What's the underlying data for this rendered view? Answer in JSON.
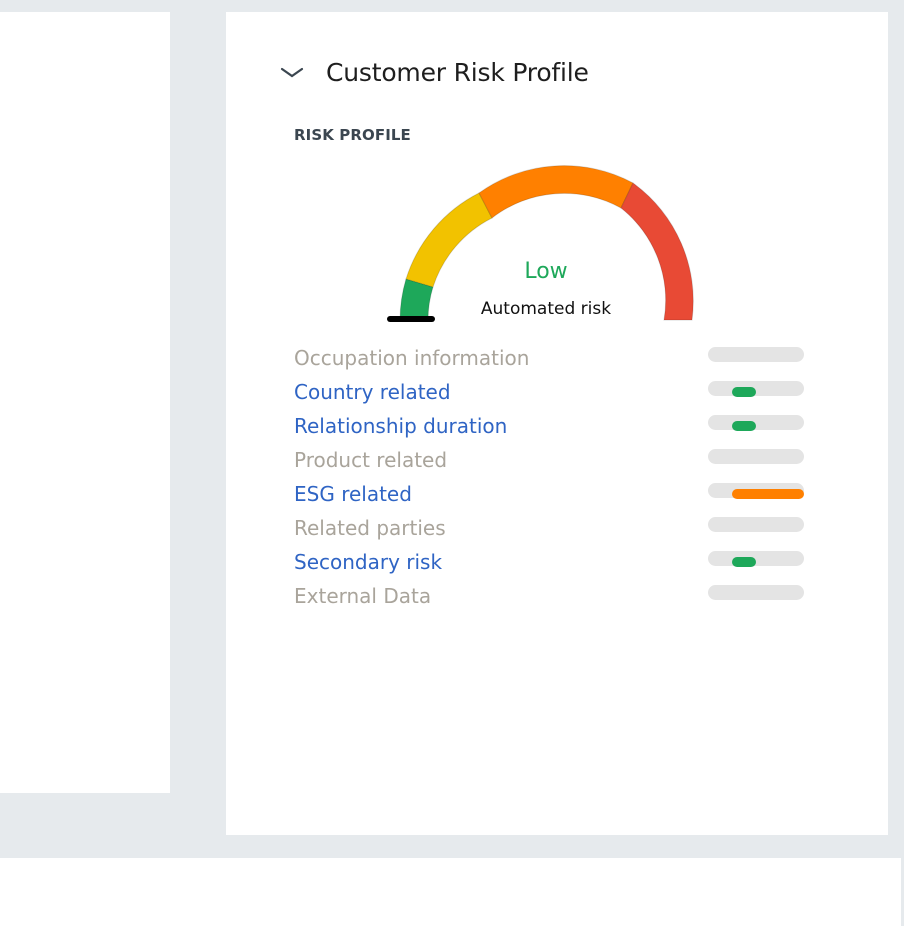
{
  "card": {
    "title": "Customer Risk Profile",
    "section_label": "RISK PROFILE"
  },
  "gauge": {
    "level": "Low",
    "caption": "Automated risk",
    "level_color": "#1ea85a",
    "segments": [
      {
        "color": "#1ea85a"
      },
      {
        "color": "#f2c200"
      },
      {
        "color": "#ff8000"
      },
      {
        "color": "#e84a35"
      }
    ]
  },
  "risk_factors": [
    {
      "label": "Occupation information",
      "state": "disabled",
      "level": null
    },
    {
      "label": "Country related",
      "state": "enabled",
      "level": "low",
      "color": "#1ea85a"
    },
    {
      "label": "Relationship duration",
      "state": "enabled",
      "level": "low",
      "color": "#1ea85a"
    },
    {
      "label": "Product related",
      "state": "disabled",
      "level": null
    },
    {
      "label": "ESG related",
      "state": "enabled",
      "level": "high",
      "color": "#ff8000"
    },
    {
      "label": "Related parties",
      "state": "disabled",
      "level": null
    },
    {
      "label": "Secondary risk",
      "state": "enabled",
      "level": "low",
      "color": "#1ea85a"
    },
    {
      "label": "External Data",
      "state": "disabled",
      "level": null
    }
  ]
}
